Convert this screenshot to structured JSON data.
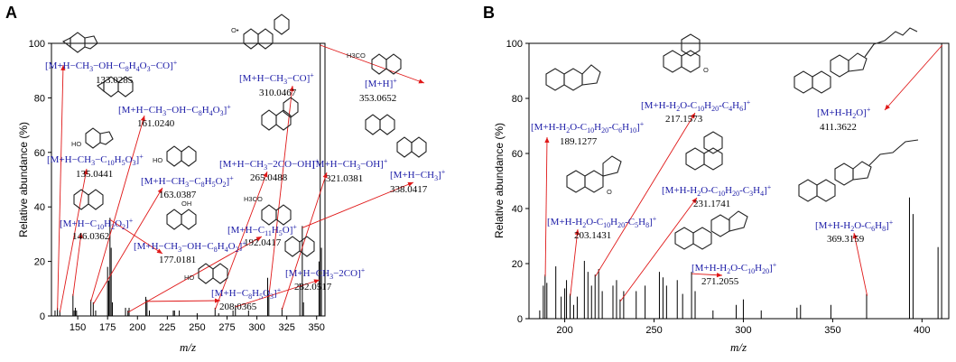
{
  "chart_data": [
    {
      "type": "bar",
      "panel": "A",
      "xlabel": "m/z",
      "ylabel": "Relative abundance (%)",
      "xlim": [
        128,
        357
      ],
      "ylim": [
        0,
        100
      ],
      "xticks": [
        "150",
        "175",
        "200",
        "225",
        "250",
        "275",
        "300",
        "325",
        "350"
      ],
      "yticks": [
        "0",
        "20",
        "40",
        "60",
        "80",
        "100"
      ],
      "peaks": {
        "x": [
          131,
          133,
          135,
          146,
          147,
          148,
          149,
          161,
          163,
          165,
          175,
          176,
          177,
          178,
          179,
          190,
          192,
          193,
          207,
          208,
          210,
          230,
          231,
          235,
          250,
          265,
          268,
          280,
          282,
          293,
          309,
          310,
          321,
          336,
          338,
          339,
          352,
          353,
          354
        ],
        "y": [
          2,
          3,
          2,
          8,
          2,
          3,
          2,
          6,
          5,
          2,
          18,
          13,
          36,
          25,
          5,
          3,
          2,
          3,
          7,
          6,
          2,
          2,
          2,
          2,
          1,
          3,
          1,
          2,
          4,
          2,
          14,
          8,
          3,
          12,
          33,
          5,
          20,
          100,
          25
        ]
      },
      "annotations": [
        {
          "ion": "[M+H−CH3−OH−C8H4O3−CO]+",
          "mz": "133.0285"
        },
        {
          "ion": "[M+H−CH3−OH−C8H4O3]+",
          "mz": "161.0240"
        },
        {
          "ion": "[M+H−CH3−C10H5O3]+",
          "mz": "135.0441"
        },
        {
          "ion": "[M+H−CH3−C8H5O2]+",
          "mz": "163.0387"
        },
        {
          "ion": "[M+H−C10H2O2]+",
          "mz": "146.0362"
        },
        {
          "ion": "[M+H−CH3−OH−C8H4O2]+",
          "mz": "177.0181"
        },
        {
          "ion": "[M+H−C8H5O3]+",
          "mz": "208.0365"
        },
        {
          "ion": "[M+H−C11H5O]+",
          "mz": "192.0417"
        },
        {
          "ion": "[M+H−CH3−2CO−OH]+",
          "mz": "265.0488"
        },
        {
          "ion": "[M+H−CH3−CO]+",
          "mz": "310.0467"
        },
        {
          "ion": "[M+H]+",
          "mz": "353.0652"
        },
        {
          "ion": "[M+H−CH3−OH]+",
          "mz": "321.0381"
        },
        {
          "ion": "[M+H−CH3]+",
          "mz": "338.0417"
        },
        {
          "ion": "[M+H−CH3−2CO]+",
          "mz": "282.0517"
        }
      ]
    },
    {
      "type": "bar",
      "panel": "B",
      "xlabel": "m/z",
      "ylabel": "Relative abundance (%)",
      "xlim": [
        180,
        415
      ],
      "ylim": [
        0,
        100
      ],
      "xticks": [
        "200",
        "250",
        "300",
        "350",
        "400"
      ],
      "yticks": [
        "0",
        "20",
        "40",
        "60",
        "80",
        "100"
      ],
      "peaks": {
        "x": [
          186,
          188,
          189,
          190,
          195,
          198,
          200,
          201,
          203,
          205,
          207,
          211,
          213,
          215,
          217,
          219,
          221,
          227,
          229,
          231,
          233,
          240,
          245,
          253,
          255,
          257,
          263,
          266,
          271,
          273,
          283,
          296,
          300,
          310,
          330,
          332,
          349,
          369,
          393,
          395,
          409,
          411
        ],
        "y": [
          3,
          12,
          16,
          13,
          19,
          8,
          11,
          14,
          9,
          5,
          8,
          21,
          17,
          12,
          16,
          18,
          10,
          12,
          14,
          7,
          10,
          10,
          12,
          17,
          15,
          12,
          14,
          9,
          17,
          10,
          3,
          5,
          7,
          3,
          4,
          5,
          5,
          9,
          44,
          38,
          26,
          100
        ]
      },
      "annotations": [
        {
          "ion": "[M+H-H2O-C10H20-C6H10]+",
          "mz": "189.1277"
        },
        {
          "ion": "[M+H-H2O-C10H20-C4H6]+",
          "mz": "217.1573"
        },
        {
          "ion": "[M+H-H2O]+",
          "mz": "411.3622"
        },
        {
          "ion": "[M+H-H2O-C10H20-C3H4]+",
          "mz": "231.1741"
        },
        {
          "ion": "[M+H-H2O-C10H20-C5H8]+",
          "mz": "203.1431"
        },
        {
          "ion": "[M+H-H2O-C6H8]+",
          "mz": "369.3159"
        },
        {
          "ion": "[M+H-H2O-C10H20]+",
          "mz": "271.2055"
        }
      ]
    }
  ],
  "text": {
    "panel_a": "A",
    "panel_b": "B",
    "a_ions": {
      "i133": {
        "p1": "[M+H−CH",
        "s1": "3",
        "p2": "−OH−C",
        "s2": "8",
        "p3": "H",
        "s3": "4",
        "p4": "O",
        "s4": "3",
        "p5": "−CO]",
        "sup": "+"
      },
      "i161": {
        "p1": "[M+H−CH",
        "s1": "3",
        "p2": "−OH−C",
        "s2": "8",
        "p3": "H",
        "s3": "4",
        "p4": "O",
        "s4": "3",
        "p5": "]",
        "sup": "+"
      },
      "i135": {
        "p1": "[M+H−CH",
        "s1": "3",
        "p2": "−C",
        "s2": "10",
        "p3": "H",
        "s3": "5",
        "p4": "O",
        "s4": "3",
        "p5": "]",
        "sup": "+"
      },
      "i163": {
        "p1": "[M+H−CH",
        "s1": "3",
        "p2": "−C",
        "s2": "8",
        "p3": "H",
        "s3": "5",
        "p4": "O",
        "s4": "2",
        "p5": "]",
        "sup": "+"
      },
      "i146": {
        "p1": "[M+H−C",
        "s1": "10",
        "p2": "H",
        "s2": "2",
        "p3": "O",
        "s3": "2",
        "p4": "]",
        "sup": "+"
      },
      "i177": {
        "p1": "[M+H−CH",
        "s1": "3",
        "p2": "−OH−C",
        "s2": "8",
        "p3": "H",
        "s3": "4",
        "p4": "O",
        "s4": "2",
        "p5": "]",
        "sup": "+"
      },
      "i208": {
        "p1": "[M+H−C",
        "s1": "8",
        "p2": "H",
        "s2": "5",
        "p3": "O",
        "s3": "3",
        "p4": "]",
        "sup": "+"
      },
      "i192": {
        "p1": "[M+H−C",
        "s1": "11",
        "p2": "H",
        "s2": "5",
        "p3": "O]",
        "sup": "+"
      },
      "i265": {
        "p1": "[M+H−CH",
        "s1": "3",
        "p2": "−2CO−OH]",
        "sup": "+"
      },
      "i310": {
        "p1": "[M+H−CH",
        "s1": "3",
        "p2": "−CO]",
        "sup": "+"
      },
      "i353": {
        "p1": "[M+H]",
        "sup": "+"
      },
      "i321": {
        "p1": "[M+H−CH",
        "s1": "3",
        "p2": "−OH]",
        "sup": "+"
      },
      "i338": {
        "p1": "[M+H−CH",
        "s1": "3",
        "p2": "]",
        "sup": "+"
      },
      "i282": {
        "p1": "[M+H−CH",
        "s1": "3",
        "p2": "−2CO]",
        "sup": "+"
      }
    },
    "b_ions": {
      "i189": {
        "p1": "[M+H-H",
        "s1": "2",
        "p2": "O-C",
        "s2": "10",
        "p3": "H",
        "s3": "20",
        "p4": "-C",
        "s4": "6",
        "p5": "H",
        "s5": "10",
        "p6": "]",
        "sup": "+"
      },
      "i217": {
        "p1": "[M+H-H",
        "s1": "2",
        "p2": "O-C",
        "s2": "10",
        "p3": "H",
        "s3": "20",
        "p4": "-C",
        "s4": "4",
        "p5": "H",
        "s5": "6",
        "p6": "]",
        "sup": "+"
      },
      "i411": {
        "p1": "[M+H-H",
        "s1": "2",
        "p2": "O]",
        "sup": "+"
      },
      "i231": {
        "p1": "[M+H-H",
        "s1": "2",
        "p2": "O-C",
        "s2": "10",
        "p3": "H",
        "s3": "20",
        "p4": "-C",
        "s4": "3",
        "p5": "H",
        "s5": "4",
        "p6": "]",
        "sup": "+"
      },
      "i203": {
        "p1": "[M+H-H",
        "s1": "2",
        "p2": "O-C",
        "s2": "10",
        "p3": "H",
        "s3": "20",
        "p4": "-C",
        "s4": "5",
        "p5": "H",
        "s5": "8",
        "p6": "]",
        "sup": "+"
      },
      "i369": {
        "p1": "[M+H-H",
        "s1": "2",
        "p2": "O-C",
        "s2": "6",
        "p3": "H",
        "s3": "8",
        "p4": "]",
        "sup": "+"
      },
      "i271": {
        "p1": "[M+H-H",
        "s1": "2",
        "p2": "O-C",
        "s2": "10",
        "p3": "H",
        "s3": "20",
        "p4": "]",
        "sup": "+"
      }
    },
    "struct_labels": {
      "ho": "HO",
      "h3co": "H3CO",
      "oh": "OH",
      "o": "O",
      "o_radical": "O•"
    }
  }
}
